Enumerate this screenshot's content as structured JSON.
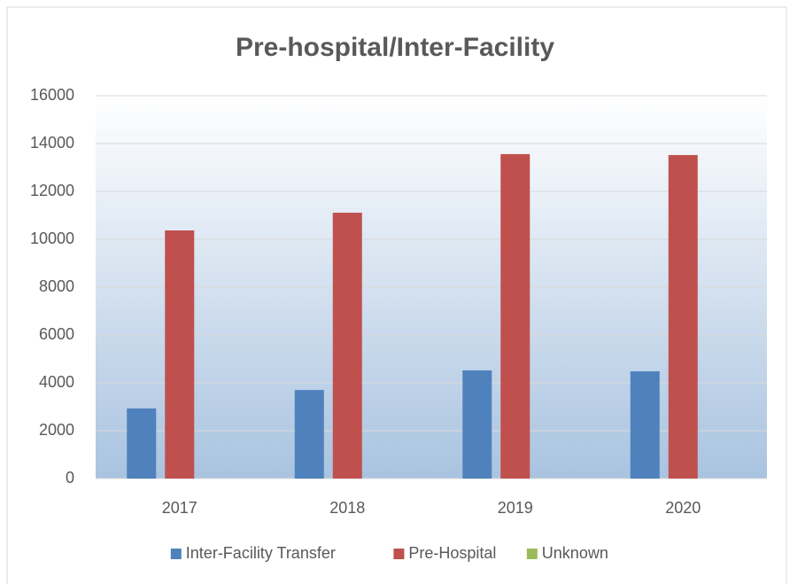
{
  "chart_data": {
    "type": "bar",
    "title": "Pre-hospital/Inter-Facility",
    "categories": [
      "2017",
      "2018",
      "2019",
      "2020"
    ],
    "series": [
      {
        "name": "Inter-Facility Transfer",
        "color": "#4f81bd",
        "values": [
          2930,
          3700,
          4520,
          4480
        ]
      },
      {
        "name": "Pre-Hospital",
        "color": "#c0504d",
        "values": [
          10370,
          11110,
          13560,
          13520
        ]
      },
      {
        "name": "Unknown",
        "color": "#9bbb59",
        "values": [
          0,
          0,
          0,
          0
        ]
      }
    ],
    "ylim": [
      0,
      16000
    ],
    "yticks": [
      0,
      2000,
      4000,
      6000,
      8000,
      10000,
      12000,
      14000,
      16000
    ],
    "grid": true,
    "legend": "bottom"
  }
}
